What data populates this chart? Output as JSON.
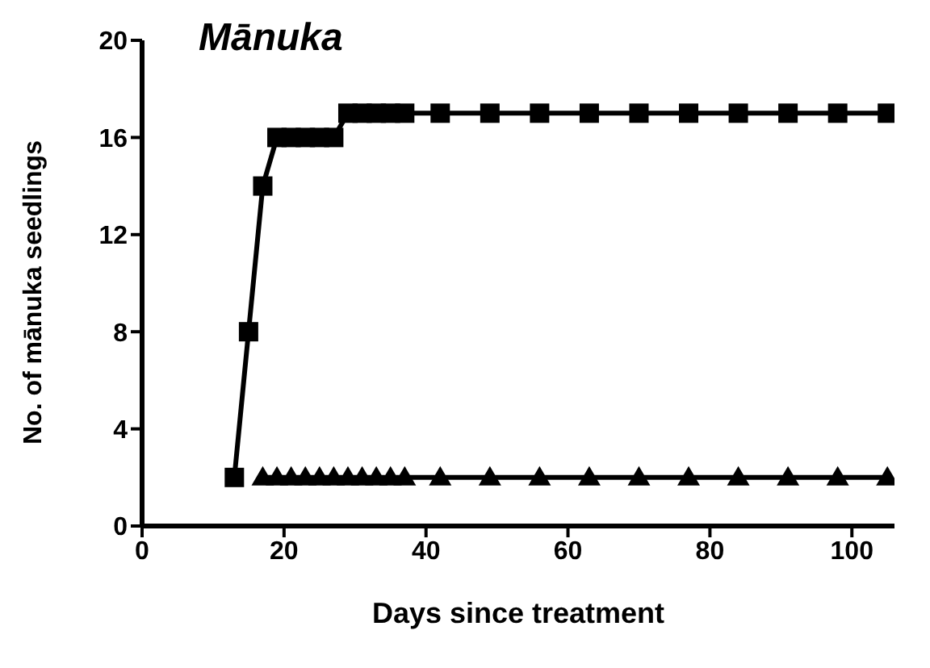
{
  "chart_data": {
    "type": "line",
    "title": "Mānuka",
    "xlabel": "Days since treatment",
    "ylabel": "No. of mānuka seedlings",
    "xlim": [
      0,
      106
    ],
    "xticks": [
      0,
      20,
      40,
      60,
      80,
      100
    ],
    "ylim": [
      0,
      20
    ],
    "yticks": [
      0,
      4,
      8,
      12,
      16,
      20
    ],
    "grid": false,
    "legend": false,
    "series": [
      {
        "color": "#000000",
        "marker": "square",
        "x": [
          13,
          15,
          17,
          19,
          21,
          23,
          25,
          27,
          29,
          31,
          33,
          35,
          37,
          42,
          49,
          56,
          63,
          70,
          77,
          84,
          91,
          98,
          105
        ],
        "values": [
          2,
          8,
          14,
          16,
          16,
          16,
          16,
          16,
          17,
          17,
          17,
          17,
          17,
          17,
          17,
          17,
          17,
          17,
          17,
          17,
          17,
          17,
          17
        ]
      },
      {
        "color": "#000000",
        "marker": "triangle",
        "x": [
          17,
          19,
          21,
          23,
          25,
          27,
          29,
          31,
          33,
          35,
          37,
          42,
          49,
          56,
          63,
          70,
          77,
          84,
          91,
          98,
          105
        ],
        "values": [
          2,
          2,
          2,
          2,
          2,
          2,
          2,
          2,
          2,
          2,
          2,
          2,
          2,
          2,
          2,
          2,
          2,
          2,
          2,
          2,
          2
        ]
      }
    ]
  }
}
